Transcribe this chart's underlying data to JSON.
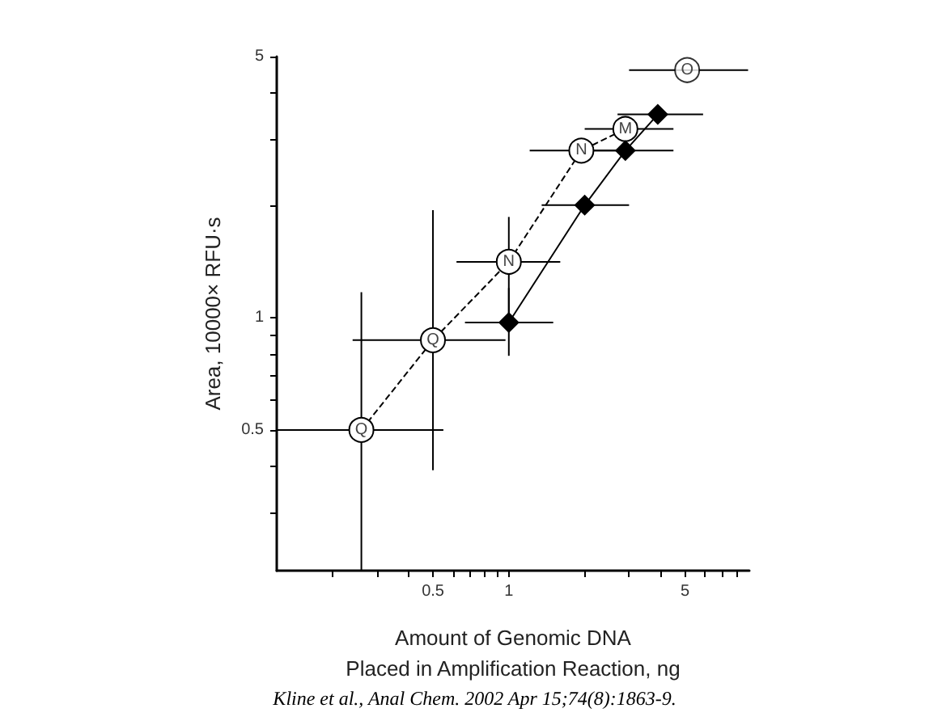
{
  "chart_data": {
    "type": "line",
    "xlabel": "Amount of Genomic DNA\nPlaced in Amplification Reaction, ng",
    "ylabel": "Area, 10000× RFU·s",
    "log": "xy",
    "xlim": [
      0.12,
      9
    ],
    "ylim": [
      0.21,
      5
    ],
    "xticks": [
      {
        "value": 0.2,
        "label": null
      },
      {
        "value": 0.3,
        "label": null
      },
      {
        "value": 0.4,
        "label": null
      },
      0.5,
      {
        "value": 0.6,
        "label": null
      },
      {
        "value": 0.7,
        "label": null
      },
      {
        "value": 0.8,
        "label": null
      },
      {
        "value": 0.9,
        "label": null
      },
      1,
      {
        "value": 2,
        "label": null
      },
      {
        "value": 3,
        "label": null
      },
      {
        "value": 4,
        "label": null
      },
      5,
      {
        "value": 6,
        "label": null
      },
      {
        "value": 7,
        "label": null
      },
      {
        "value": 8,
        "label": null
      }
    ],
    "yticks": [
      {
        "value": 0.3,
        "label": null
      },
      {
        "value": 0.4,
        "label": null
      },
      0.5,
      {
        "value": 0.6,
        "label": null
      },
      {
        "value": 0.7,
        "label": null
      },
      {
        "value": 0.8,
        "label": null
      },
      {
        "value": 0.9,
        "label": null
      },
      1,
      {
        "value": 2,
        "label": null
      },
      {
        "value": 3,
        "label": null
      },
      {
        "value": 4,
        "label": null
      },
      5
    ],
    "grid": false,
    "series": [
      {
        "color": "#000000",
        "marker": "circle",
        "line_style": "dashed",
        "x": [
          0.26,
          0.5,
          1.0,
          1.94,
          2.9
        ],
        "values": [
          0.5,
          0.87,
          1.41,
          2.8,
          3.2
        ],
        "xerrors": [
          [
            0.12,
            0.55
          ],
          [
            0.24,
            0.97
          ],
          [
            0.62,
            1.6
          ],
          [
            1.21,
            2.9
          ],
          [
            2.0,
            4.5
          ]
        ],
        "errors": [
          [
            0.21,
            1.17
          ],
          [
            0.39,
            1.94
          ],
          [
            1.0,
            1.86
          ],
          null,
          null
        ]
      },
      {
        "type": "scatter",
        "color": "#000000",
        "marker": "circle",
        "x": [
          5.1
        ],
        "values": [
          4.6
        ],
        "xerrors": [
          [
            3.0,
            8.9
          ]
        ],
        "errors": [
          null
        ]
      },
      {
        "color": "#000000",
        "marker": "diamond",
        "line_style": "solid",
        "x": [
          1.0,
          2.0,
          2.9,
          3.9
        ],
        "values": [
          0.97,
          2.0,
          2.8,
          3.5
        ],
        "xerrors": [
          [
            0.67,
            1.5
          ],
          [
            1.35,
            3.0
          ],
          [
            2.0,
            4.5
          ],
          [
            2.7,
            5.9
          ]
        ],
        "errors": [
          [
            0.79,
            1.2
          ],
          null,
          null,
          null
        ]
      }
    ],
    "annotations": [
      {
        "text": "Q",
        "x": 0.26,
        "y": 0.5
      },
      {
        "text": "Q",
        "x": 0.5,
        "y": 0.87
      },
      {
        "text": "N",
        "x": 1.0,
        "y": 1.41
      },
      {
        "text": "N",
        "x": 1.94,
        "y": 2.8
      },
      {
        "text": "M",
        "x": 2.9,
        "y": 3.2
      },
      {
        "text": "O",
        "x": 5.1,
        "y": 4.6
      },
      "Kline et al., Anal Chem. 2002 Apr 15;74(8):1863-9."
    ]
  }
}
